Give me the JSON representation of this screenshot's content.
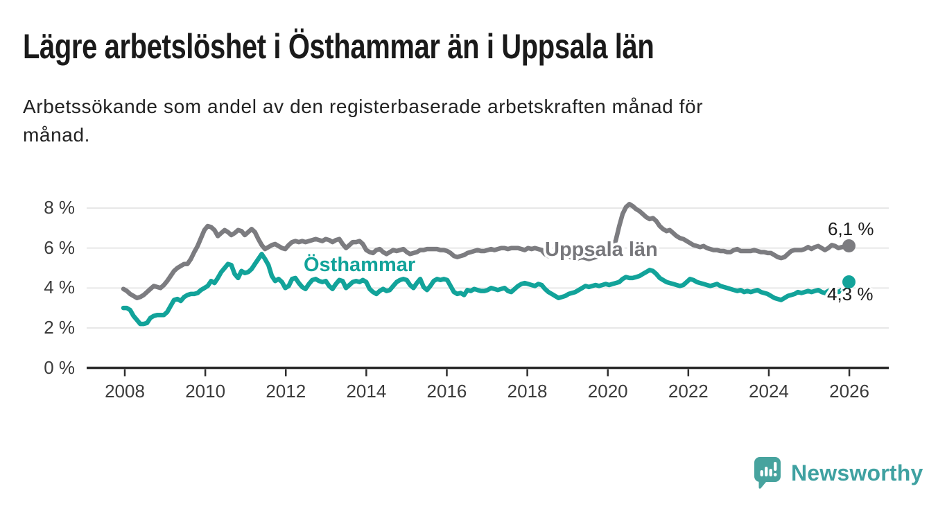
{
  "title": "Lägre arbetslöshet i Östhammar än i Uppsala län",
  "subtitle_lines": [
    "Arbetssökande som andel av den registerbaserade arbetskraften månad för",
    "månad."
  ],
  "branding": {
    "logo_text": "Newsworthy",
    "logo_color": "#47a39e"
  },
  "colors": {
    "uppsala_line": "#7c7c80",
    "osthammar_line": "#12a39a",
    "grid": "#e2e2e2",
    "axis": "#2e2e2e",
    "tick_text": "#3b3b3b"
  },
  "chart_data": {
    "type": "line",
    "x_unit": "month",
    "x_range": [
      "2008-01",
      "2025-12"
    ],
    "x_ticks": [
      2008,
      2010,
      2012,
      2014,
      2016,
      2018,
      2020,
      2022,
      2024,
      2026
    ],
    "y_ticks": [
      {
        "v": 0,
        "label": "0 %"
      },
      {
        "v": 2,
        "label": "2 %"
      },
      {
        "v": 4,
        "label": "4 %"
      },
      {
        "v": 6,
        "label": "6 %"
      },
      {
        "v": 8,
        "label": "8 %"
      }
    ],
    "ylim": [
      0,
      8.6
    ],
    "grid": true,
    "legend": "inline-labels",
    "series": [
      {
        "name": "Uppsala län",
        "color": "#7c7c80",
        "end_label": "6,1 %",
        "end_value": 6.1,
        "values": [
          3.95,
          3.85,
          3.7,
          3.6,
          3.5,
          3.55,
          3.65,
          3.8,
          3.95,
          4.1,
          4.05,
          4.0,
          4.15,
          4.35,
          4.6,
          4.85,
          5.0,
          5.1,
          5.2,
          5.2,
          5.45,
          5.8,
          6.1,
          6.5,
          6.9,
          7.1,
          7.05,
          6.9,
          6.6,
          6.75,
          6.9,
          6.8,
          6.65,
          6.75,
          6.9,
          6.85,
          6.65,
          6.8,
          6.95,
          6.8,
          6.45,
          6.15,
          5.95,
          6.05,
          6.15,
          6.2,
          6.1,
          6.0,
          5.95,
          6.15,
          6.3,
          6.35,
          6.3,
          6.35,
          6.3,
          6.35,
          6.4,
          6.45,
          6.4,
          6.35,
          6.45,
          6.4,
          6.3,
          6.4,
          6.45,
          6.2,
          6.0,
          6.15,
          6.3,
          6.3,
          6.35,
          6.2,
          5.9,
          5.8,
          5.75,
          5.9,
          5.95,
          5.8,
          5.7,
          5.8,
          5.9,
          5.85,
          5.9,
          5.95,
          5.8,
          5.7,
          5.75,
          5.8,
          5.9,
          5.9,
          5.95,
          5.95,
          5.95,
          5.95,
          5.9,
          5.9,
          5.85,
          5.75,
          5.6,
          5.55,
          5.6,
          5.65,
          5.75,
          5.8,
          5.85,
          5.9,
          5.85,
          5.85,
          5.9,
          5.95,
          5.9,
          5.95,
          6.0,
          6.0,
          5.95,
          6.0,
          6.0,
          6.0,
          5.95,
          5.9,
          6.0,
          5.95,
          6.0,
          5.95,
          5.9,
          5.7,
          5.6,
          5.65,
          5.75,
          5.8,
          5.75,
          5.7,
          5.6,
          5.5,
          5.45,
          5.5,
          5.55,
          5.5,
          5.45,
          5.5,
          5.55,
          5.6,
          5.7,
          5.75,
          5.8,
          5.9,
          6.4,
          7.1,
          7.7,
          8.05,
          8.2,
          8.1,
          7.95,
          7.85,
          7.7,
          7.55,
          7.45,
          7.5,
          7.35,
          7.1,
          6.95,
          6.85,
          6.9,
          6.75,
          6.6,
          6.5,
          6.45,
          6.35,
          6.25,
          6.15,
          6.1,
          6.05,
          6.1,
          6.0,
          5.95,
          5.9,
          5.9,
          5.85,
          5.85,
          5.8,
          5.8,
          5.9,
          5.95,
          5.85,
          5.85,
          5.85,
          5.85,
          5.9,
          5.85,
          5.8,
          5.8,
          5.75,
          5.75,
          5.65,
          5.55,
          5.5,
          5.55,
          5.7,
          5.85,
          5.9,
          5.9,
          5.9,
          5.95,
          6.05,
          5.95,
          6.05,
          6.1,
          6.0,
          5.9,
          6.0,
          6.15,
          6.1,
          6.0,
          6.05,
          6.05,
          6.1
        ]
      },
      {
        "name": "Östhammar",
        "color": "#12a39a",
        "end_label": "4,3 %",
        "end_value": 4.3,
        "values": [
          3.0,
          3.0,
          2.9,
          2.6,
          2.4,
          2.2,
          2.2,
          2.25,
          2.5,
          2.6,
          2.65,
          2.65,
          2.65,
          2.8,
          3.1,
          3.4,
          3.45,
          3.35,
          3.55,
          3.65,
          3.7,
          3.7,
          3.75,
          3.9,
          4.0,
          4.1,
          4.35,
          4.25,
          4.5,
          4.8,
          5.0,
          5.2,
          5.15,
          4.7,
          4.5,
          4.85,
          4.75,
          4.8,
          4.95,
          5.2,
          5.45,
          5.7,
          5.45,
          5.15,
          4.6,
          4.35,
          4.45,
          4.3,
          4.0,
          4.1,
          4.45,
          4.5,
          4.25,
          4.05,
          3.95,
          4.2,
          4.4,
          4.45,
          4.35,
          4.3,
          4.35,
          4.1,
          3.95,
          4.2,
          4.4,
          4.35,
          4.0,
          4.15,
          4.3,
          4.35,
          4.3,
          4.4,
          4.3,
          3.95,
          3.8,
          3.7,
          3.85,
          3.95,
          3.85,
          3.9,
          4.1,
          4.3,
          4.4,
          4.45,
          4.4,
          4.15,
          4.0,
          4.25,
          4.45,
          4.05,
          3.9,
          4.1,
          4.35,
          4.45,
          4.4,
          4.45,
          4.4,
          4.1,
          3.8,
          3.7,
          3.75,
          3.65,
          3.9,
          3.85,
          3.95,
          3.9,
          3.85,
          3.85,
          3.9,
          4.0,
          3.95,
          3.9,
          3.95,
          4.0,
          3.85,
          3.8,
          3.95,
          4.1,
          4.2,
          4.25,
          4.2,
          4.15,
          4.1,
          4.2,
          4.15,
          3.95,
          3.8,
          3.7,
          3.6,
          3.5,
          3.55,
          3.6,
          3.7,
          3.75,
          3.8,
          3.9,
          4.0,
          4.1,
          4.05,
          4.1,
          4.15,
          4.1,
          4.15,
          4.2,
          4.15,
          4.2,
          4.25,
          4.3,
          4.45,
          4.55,
          4.5,
          4.5,
          4.55,
          4.6,
          4.7,
          4.8,
          4.9,
          4.85,
          4.7,
          4.5,
          4.4,
          4.3,
          4.25,
          4.2,
          4.15,
          4.1,
          4.15,
          4.3,
          4.45,
          4.4,
          4.3,
          4.25,
          4.2,
          4.15,
          4.1,
          4.15,
          4.2,
          4.1,
          4.05,
          4.0,
          3.95,
          3.9,
          3.85,
          3.9,
          3.8,
          3.85,
          3.8,
          3.85,
          3.9,
          3.8,
          3.75,
          3.7,
          3.6,
          3.5,
          3.45,
          3.4,
          3.5,
          3.6,
          3.65,
          3.7,
          3.8,
          3.75,
          3.8,
          3.85,
          3.8,
          3.85,
          3.9,
          3.8,
          3.75,
          3.85,
          3.9,
          3.85,
          3.8,
          3.9,
          4.0,
          4.3
        ]
      }
    ]
  }
}
